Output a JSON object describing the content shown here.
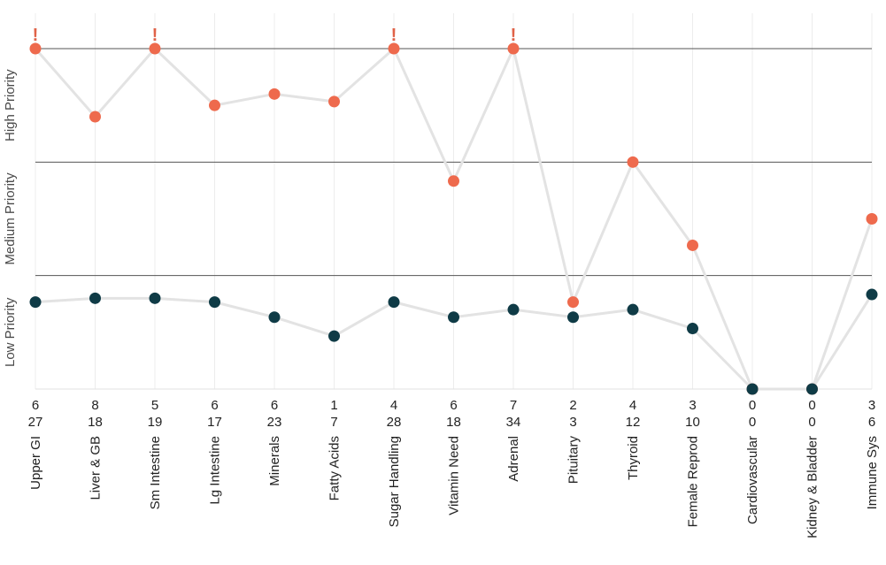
{
  "chart_data": {
    "type": "line",
    "band_labels": [
      "High Priority",
      "Medium Priority",
      "Low Priority"
    ],
    "categories": [
      "Upper GI",
      "Liver & GB",
      "Sm Intestine",
      "Lg Intestine",
      "Minerals",
      "Fatty Acids",
      "Sugar Handling",
      "Vitamin Need",
      "Adrenal",
      "Pituitary",
      "Thyroid",
      "Female Reprod",
      "Cardiovascular",
      "Kidney & Bladder",
      "Immune Sys"
    ],
    "row1_values": [
      "6",
      "8",
      "5",
      "6",
      "6",
      "1",
      "4",
      "6",
      "7",
      "2",
      "4",
      "3",
      "0",
      "0",
      "3"
    ],
    "row2_values": [
      "27",
      "18",
      "19",
      "17",
      "23",
      "7",
      "28",
      "18",
      "34",
      "3",
      "12",
      "10",
      "0",
      "0",
      "6"
    ],
    "flags": [
      "!",
      "",
      "!",
      "",
      "",
      "",
      "!",
      "",
      "!",
      "",
      "",
      "",
      "",
      "",
      ""
    ],
    "series": [
      {
        "values": [
          9.0,
          7.2,
          9.0,
          7.5,
          7.8,
          7.6,
          9.0,
          5.5,
          9.0,
          2.3,
          6.0,
          3.8,
          0.0,
          0.0,
          4.5
        ],
        "color": "#ee6a4d"
      },
      {
        "values": [
          2.3,
          2.4,
          2.4,
          2.3,
          1.9,
          1.4,
          2.3,
          1.9,
          2.1,
          1.9,
          2.1,
          1.6,
          0.0,
          0.0,
          2.5
        ],
        "color": "#0f3b46"
      }
    ],
    "ylim": [
      0,
      9
    ],
    "band_boundaries": [
      3,
      6,
      9
    ],
    "grid": true,
    "legend": "none"
  }
}
